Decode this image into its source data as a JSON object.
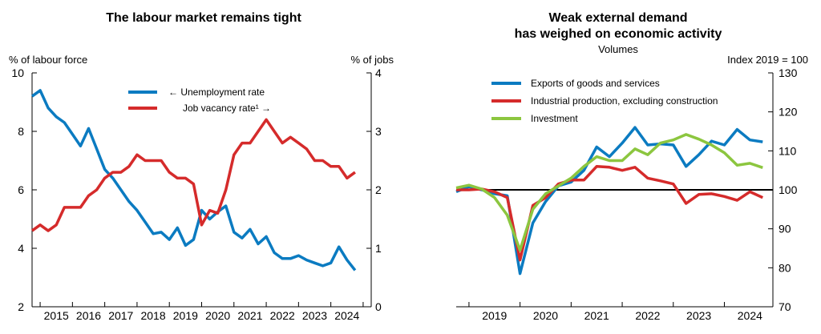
{
  "chart_data": [
    {
      "type": "line",
      "title": "The labour market remains tight",
      "ylabel_left": "% of labour force",
      "ylabel_right": "% of jobs",
      "ylim_left": [
        2,
        10
      ],
      "ylim_right": [
        0,
        4
      ],
      "yticks_left": [
        "10",
        "8",
        "6",
        "4",
        "2"
      ],
      "yticks_right": [
        "4",
        "3",
        "2",
        "1",
        "0"
      ],
      "x_labels": [
        "2015",
        "2016",
        "2017",
        "2018",
        "2019",
        "2020",
        "2021",
        "2022",
        "2023",
        "2024"
      ],
      "x_start": 2014.75,
      "x_step": 0.25,
      "grid": false,
      "legend_position": "top-center",
      "series": [
        {
          "name": "← Unemployment rate",
          "axis": "left",
          "color": "#0b7bc1",
          "values": [
            9.2,
            9.4,
            8.8,
            8.5,
            8.3,
            7.9,
            7.5,
            8.1,
            7.4,
            6.7,
            6.4,
            6.0,
            5.6,
            5.3,
            4.9,
            4.5,
            4.55,
            4.3,
            4.7,
            4.1,
            4.3,
            5.3,
            5.0,
            5.25,
            5.45,
            4.55,
            4.35,
            4.65,
            4.15,
            4.4,
            3.85,
            3.65,
            3.65,
            3.75,
            3.6,
            3.5,
            3.4,
            3.5,
            4.05,
            3.6,
            3.25
          ]
        },
        {
          "name": "Job vacancy rate¹ →",
          "axis": "right",
          "color": "#d52b2b",
          "values": [
            1.3,
            1.4,
            1.3,
            1.4,
            1.7,
            1.7,
            1.7,
            1.9,
            2.0,
            2.2,
            2.3,
            2.3,
            2.4,
            2.6,
            2.5,
            2.5,
            2.5,
            2.3,
            2.2,
            2.2,
            2.1,
            1.4,
            1.65,
            1.6,
            2.0,
            2.6,
            2.8,
            2.8,
            3.0,
            3.2,
            3.0,
            2.8,
            2.9,
            2.8,
            2.7,
            2.5,
            2.5,
            2.4,
            2.4,
            2.2,
            2.3
          ]
        }
      ]
    },
    {
      "type": "line",
      "title": "Weak external demand has weighed on economic activity",
      "title_lines": [
        "Weak external demand",
        "has weighed on economic activity"
      ],
      "subtitle": "Volumes",
      "ylabel_right": "Index 2019 = 100",
      "ylim": [
        70,
        130
      ],
      "yticks_right": [
        "130",
        "120",
        "110",
        "100",
        "90",
        "80",
        "70"
      ],
      "reference_line": 100,
      "x_labels": [
        "2019",
        "2020",
        "2021",
        "2022",
        "2023",
        "2024"
      ],
      "x_start": 2018.75,
      "x_step": 0.25,
      "grid": false,
      "legend_position": "top-left",
      "series": [
        {
          "name": "Exports of goods and services",
          "color": "#0b7bc1",
          "values": [
            99.5,
            100.8,
            100.0,
            99.0,
            98.5,
            78.5,
            91.5,
            97.0,
            101.0,
            102.0,
            105.0,
            111.0,
            108.5,
            112.0,
            116.0,
            111.5,
            111.8,
            111.5,
            106.0,
            109.0,
            112.5,
            111.5,
            115.5,
            112.8,
            112.3
          ]
        },
        {
          "name": "Industrial production, excluding construction",
          "color": "#d52b2b",
          "values": [
            100.0,
            100.0,
            100.2,
            99.5,
            98.0,
            82.0,
            96.0,
            98.0,
            101.5,
            102.5,
            102.5,
            106.0,
            105.8,
            105.0,
            105.8,
            103.0,
            102.3,
            101.5,
            96.5,
            98.8,
            99.0,
            98.3,
            97.3,
            99.5,
            98.0
          ]
        },
        {
          "name": "Investment",
          "color": "#8cc63f",
          "values": [
            100.5,
            101.2,
            100.2,
            98.0,
            93.5,
            84.5,
            95.0,
            99.0,
            101.0,
            103.0,
            106.0,
            108.5,
            107.5,
            107.5,
            110.5,
            109.0,
            112.0,
            112.8,
            114.2,
            113.0,
            111.5,
            109.5,
            106.3,
            106.8,
            105.7
          ]
        }
      ]
    }
  ]
}
